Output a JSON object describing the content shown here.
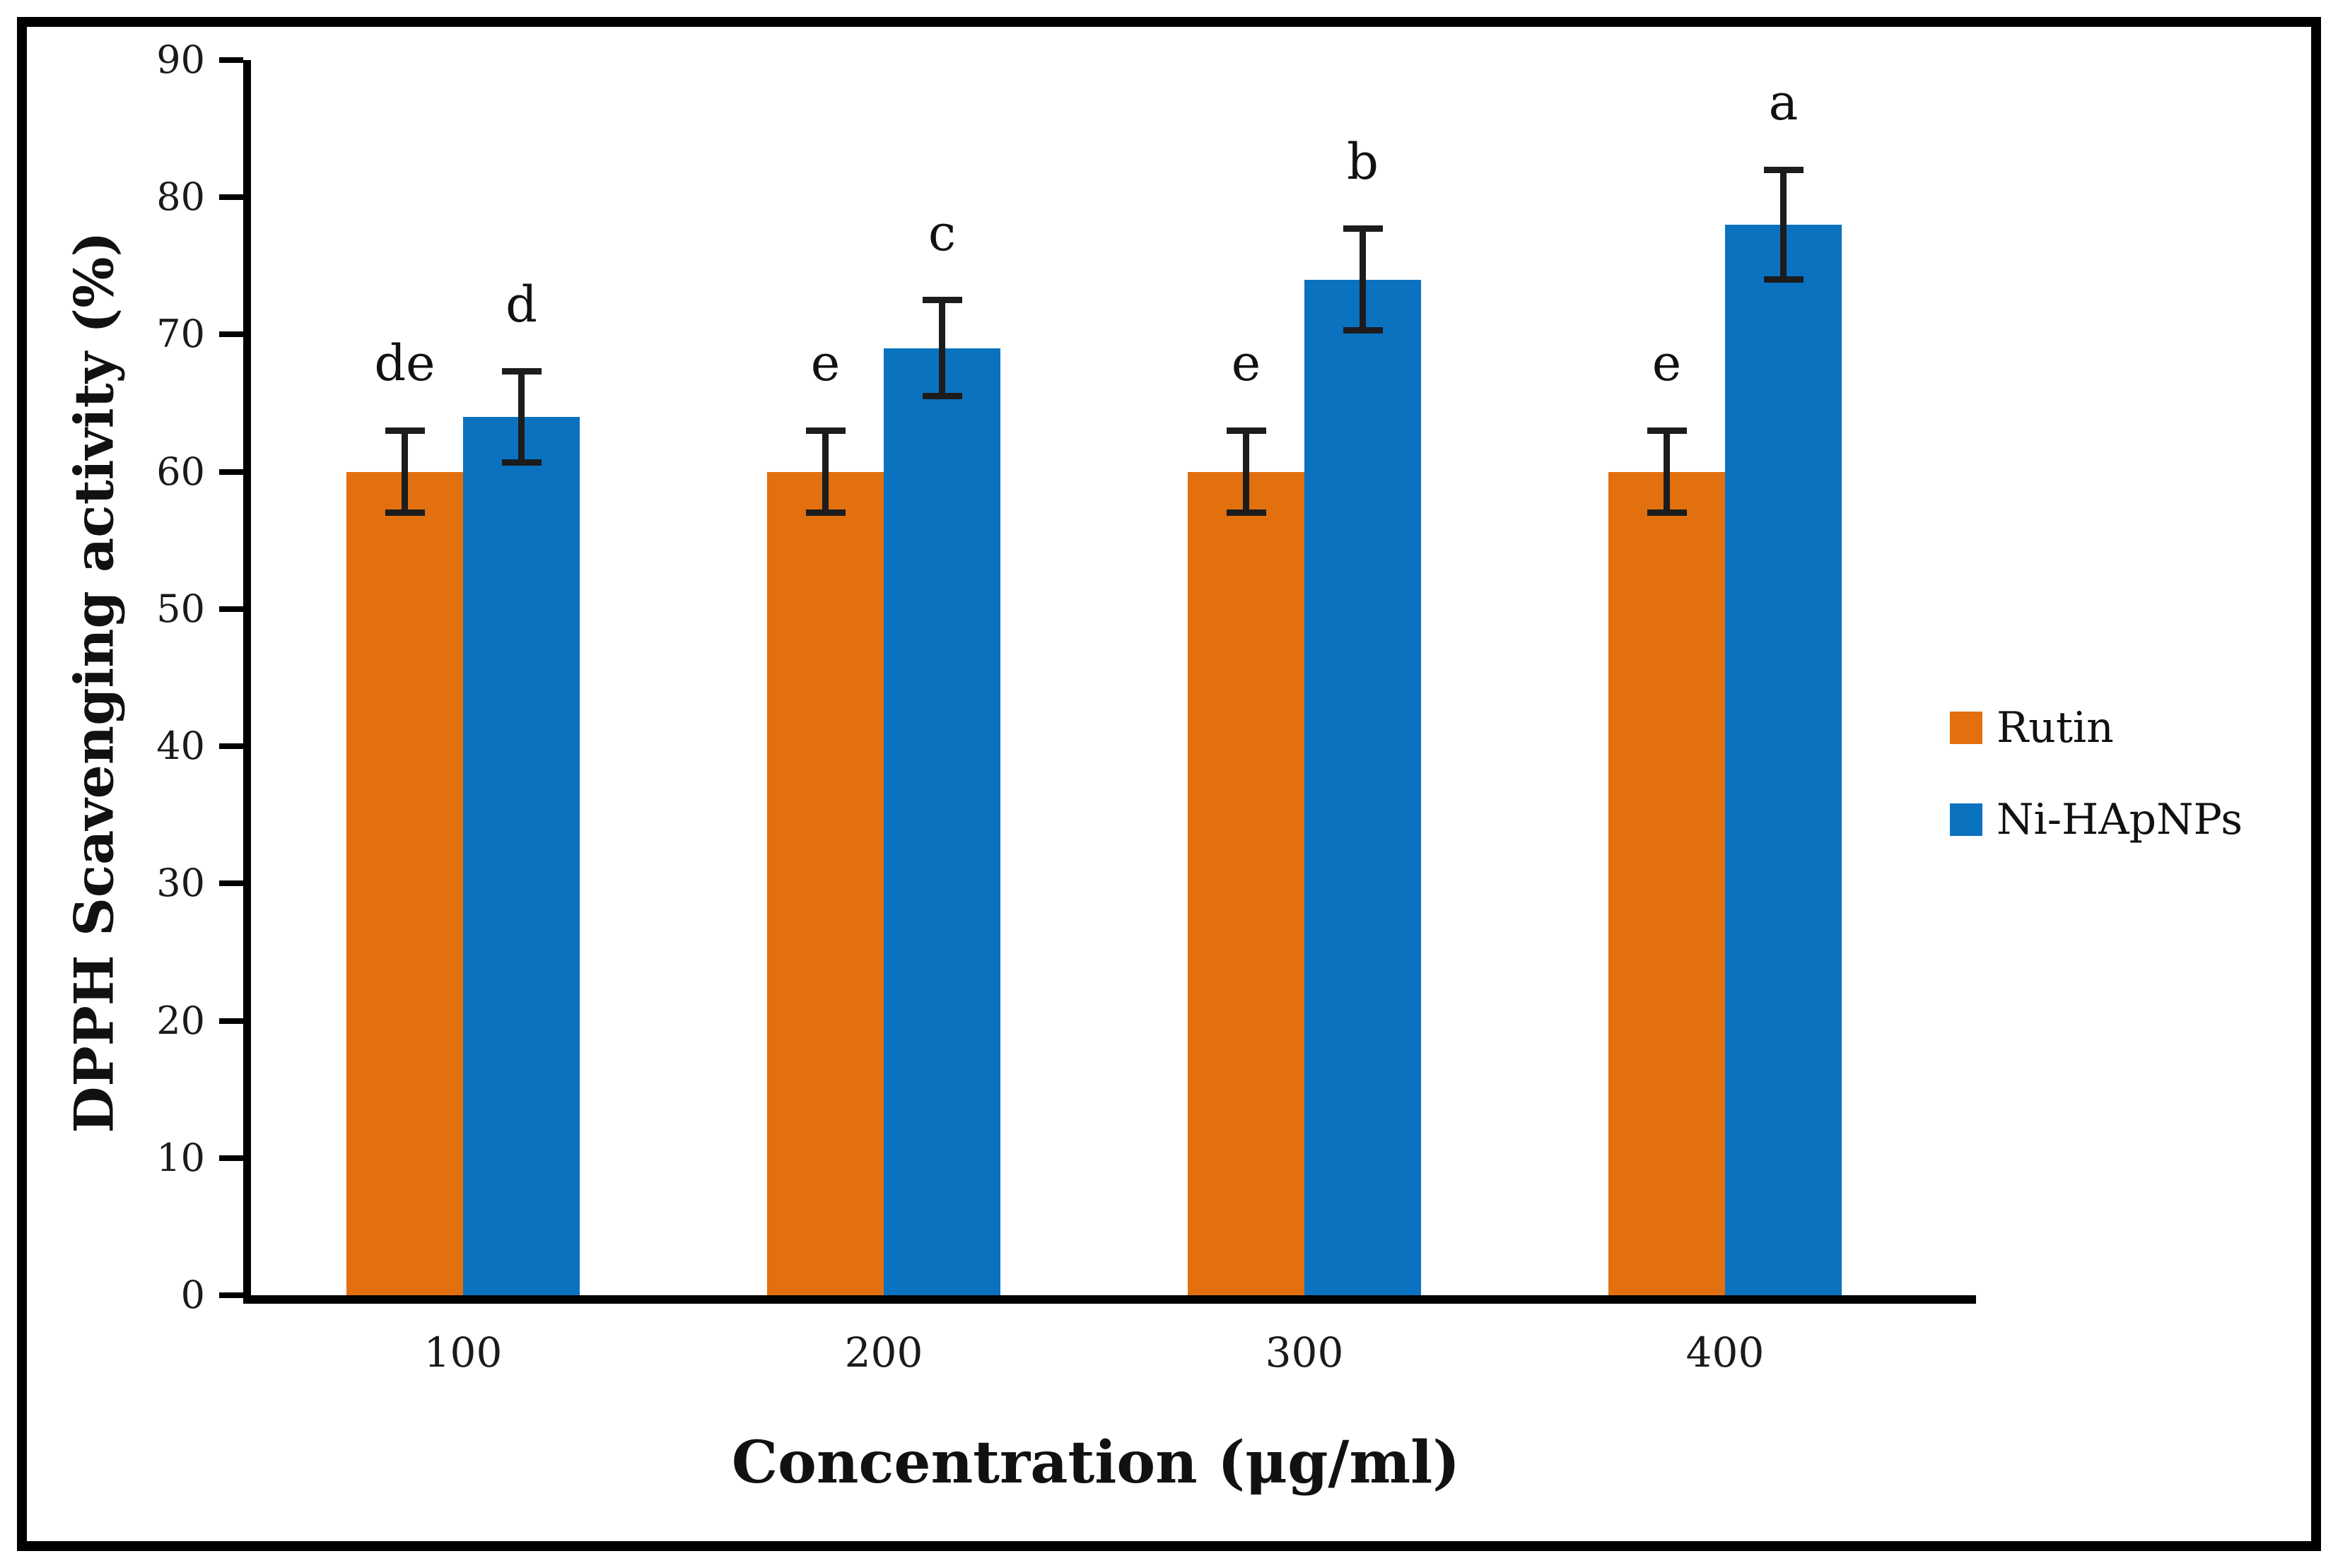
{
  "chart_data": {
    "type": "bar",
    "title": "",
    "xlabel": "Concentration (μg/ml)",
    "ylabel": "DPPH Scavenging activity (%)",
    "categories": [
      "100",
      "200",
      "300",
      "400"
    ],
    "series": [
      {
        "name": "Rutin",
        "color": "#E2700E",
        "values": [
          60,
          60,
          60,
          60
        ],
        "errors": [
          3,
          3,
          3,
          3
        ],
        "sig_letters": [
          "de",
          "e",
          "e",
          "e"
        ]
      },
      {
        "name": "Ni-HApNPs",
        "color": "#0B72C0",
        "values": [
          64,
          69,
          74,
          78
        ],
        "errors": [
          3.3,
          3.5,
          3.7,
          4
        ],
        "sig_letters": [
          "d",
          "c",
          "b",
          "a"
        ]
      }
    ],
    "ylim": [
      0,
      90
    ],
    "yticks": [
      "0",
      "10",
      "20",
      "30",
      "40",
      "50",
      "60",
      "70",
      "80",
      "90"
    ],
    "grid": false,
    "legend_position": "right-middle",
    "axis_color": "#000000",
    "error_bar_color": "#1c1c1c"
  }
}
